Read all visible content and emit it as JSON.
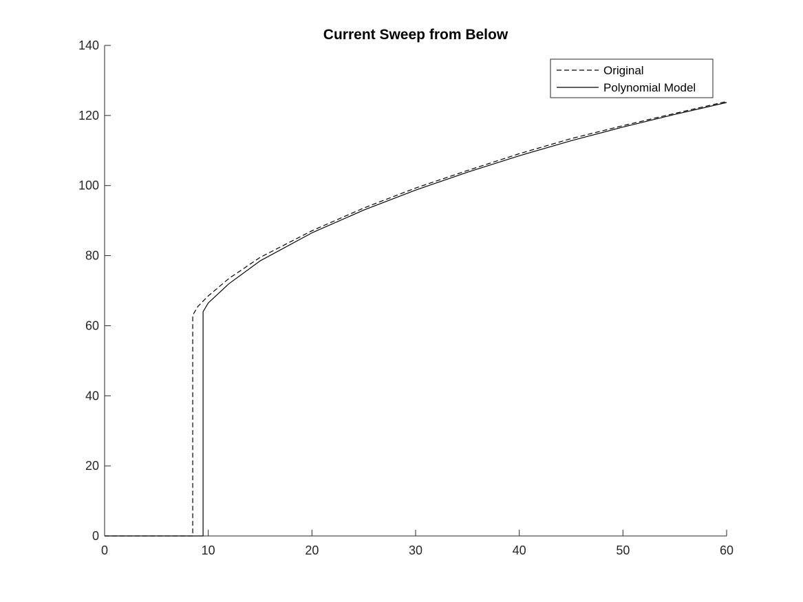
{
  "chart_data": {
    "type": "line",
    "title": "Current Sweep from Below",
    "xlabel": "",
    "ylabel": "",
    "xlim": [
      0,
      60
    ],
    "ylim": [
      0,
      140
    ],
    "xticks": [
      0,
      10,
      20,
      30,
      40,
      50,
      60
    ],
    "yticks": [
      0,
      20,
      40,
      60,
      80,
      100,
      120,
      140
    ],
    "grid": false,
    "legend_position": "top-right",
    "series": [
      {
        "name": "Original",
        "style": "dashed",
        "color": "#000000",
        "x": [
          0,
          8.5,
          8.5,
          9.0,
          10,
          12,
          15,
          20,
          25,
          30,
          35,
          40,
          45,
          50,
          55,
          60
        ],
        "y": [
          0,
          0,
          63,
          65.5,
          68.5,
          73.5,
          79.5,
          87.1,
          93.6,
          99.3,
          104.3,
          109.1,
          113.4,
          117.1,
          120.6,
          124
        ]
      },
      {
        "name": "Polynomial Model",
        "style": "solid",
        "color": "#000000",
        "x": [
          0,
          9.5,
          9.5,
          10,
          12,
          15,
          20,
          25,
          30,
          35,
          40,
          45,
          50,
          55,
          60
        ],
        "y": [
          0,
          0,
          64,
          66.5,
          72,
          78.5,
          86.5,
          93,
          98.7,
          103.8,
          108.5,
          112.8,
          116.7,
          120.3,
          123.7
        ]
      }
    ]
  }
}
